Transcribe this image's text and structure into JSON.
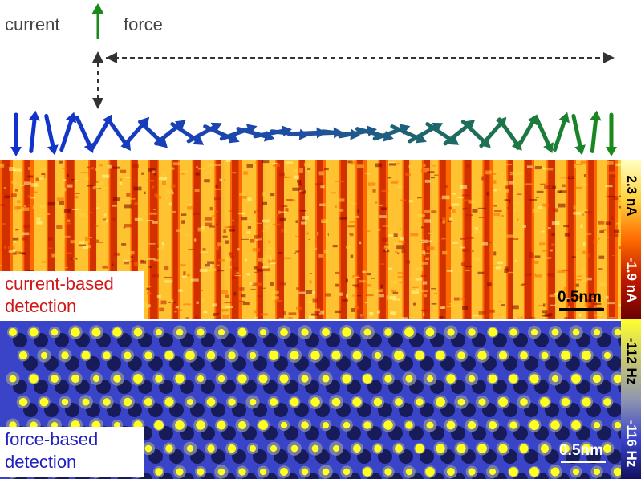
{
  "legend": {
    "current_label": "current",
    "force_label": "force",
    "current_arrow_color": "#000000",
    "force_arrow_color": "#1a8a1a"
  },
  "spin_colors": {
    "start": "#1030d0",
    "middle": "#2050a0",
    "end": "#1a8a1a"
  },
  "panels": {
    "current": {
      "caption_line1": "current-based",
      "caption_line2": "detection",
      "caption_color": "#d01818",
      "scale_label": "0.5nm",
      "scale_color": "#000000",
      "colorbar_top": "2.3 nA",
      "colorbar_bottom": "-1.9 nA",
      "colors": [
        "#7a0000",
        "#c01800",
        "#ff6a00",
        "#ffd23a",
        "#ffff9a"
      ]
    },
    "force": {
      "caption_line1": "force-based",
      "caption_line2": "detection",
      "caption_color": "#2020c0",
      "scale_label": "0.5nm",
      "scale_color": "#ffffff",
      "colorbar_top": "-112 Hz",
      "colorbar_bottom": "-116 Hz",
      "colors": [
        "#000010",
        "#1b1f8a",
        "#3a44c8",
        "#8890a0",
        "#ffff20"
      ]
    }
  }
}
